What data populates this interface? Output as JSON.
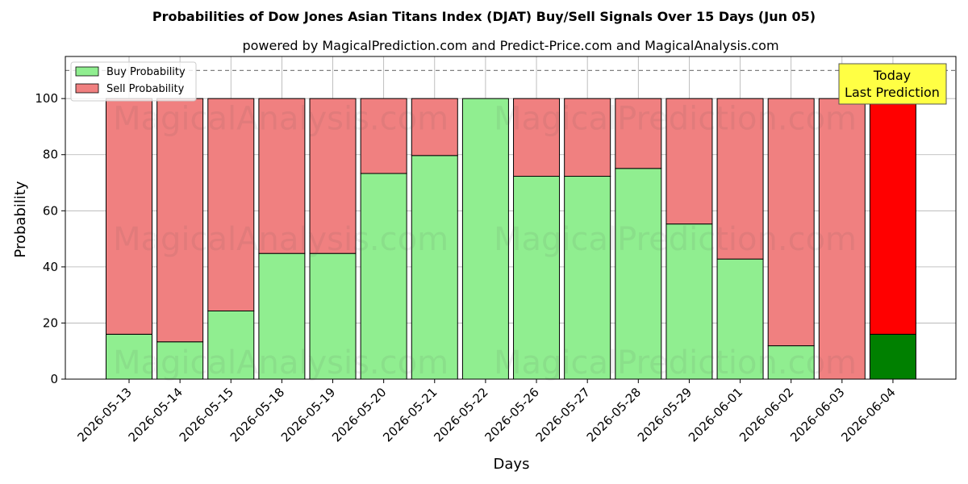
{
  "chart_data": {
    "type": "bar",
    "stacked": true,
    "title": "Probabilities of Dow Jones Asian Titans Index (DJAT) Buy/Sell Signals Over 15 Days (Jun 05)",
    "subtitle": "powered by MagicalPrediction.com and Predict-Price.com and MagicalAnalysis.com",
    "xlabel": "Days",
    "ylabel": "Probability",
    "ylim": [
      0,
      115
    ],
    "yticks": [
      0,
      20,
      40,
      60,
      80,
      100
    ],
    "reference_line": 110,
    "grid": true,
    "legend_position": "top-left",
    "categories": [
      "2026-05-13",
      "2026-05-14",
      "2026-05-15",
      "2026-05-18",
      "2026-05-19",
      "2026-05-20",
      "2026-05-21",
      "2026-05-22",
      "2026-05-26",
      "2026-05-27",
      "2026-05-28",
      "2026-05-29",
      "2026-06-01",
      "2026-06-02",
      "2026-06-03",
      "2026-06-04"
    ],
    "series": [
      {
        "name": "Buy Probability",
        "color": "#90ee90",
        "values": [
          16,
          13.3,
          24.3,
          44.8,
          44.8,
          73.3,
          79.7,
          100,
          72.3,
          72.3,
          75.1,
          55.3,
          42.8,
          11.9,
          0,
          16
        ]
      },
      {
        "name": "Sell Probability",
        "color": "#f08080",
        "values": [
          84,
          86.7,
          75.7,
          55.2,
          55.2,
          26.7,
          20.3,
          0,
          27.7,
          27.7,
          24.9,
          44.7,
          57.2,
          88.1,
          100,
          84
        ]
      }
    ],
    "highlight": {
      "index": 15,
      "buy_color": "#008000",
      "sell_color": "#ff0000"
    },
    "annotation": {
      "line1": "Today",
      "line2": "Last Prediction"
    },
    "watermarks": [
      "MagicalAnalysis.com",
      "MagicalPrediction.com"
    ]
  }
}
